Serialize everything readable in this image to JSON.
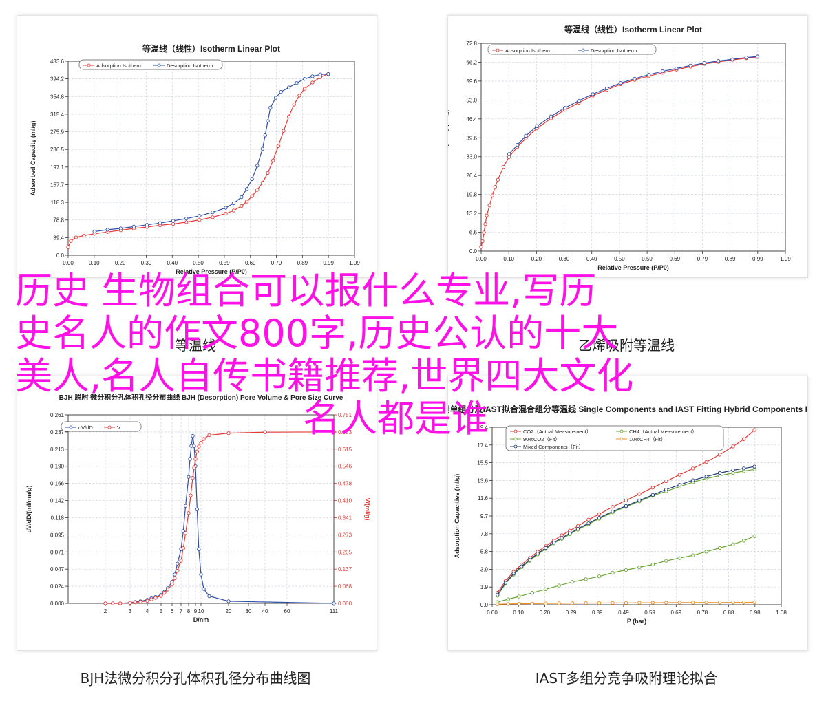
{
  "overlay_title": {
    "line1": "历史 生物组合可以报什么专业,写历",
    "line2": "史名人的作文800字,历史公认的十大",
    "line3": "美人,名人自传书籍推荐,世界四大文化",
    "line4": "名人都是谁"
  },
  "captions": {
    "top_left": "等温线",
    "top_right": "乙烯吸附等温线",
    "bottom_left": "BJH法微分积分孔体积孔径分布曲线图",
    "bottom_right": "IAST多组分竞争吸附理论拟合"
  },
  "colors": {
    "red": "#e53935",
    "blue": "#2f4fa8",
    "green": "#6aa533",
    "orange": "#f08a1d",
    "navy": "#1f3a78"
  },
  "chart_data": [
    {
      "type": "line",
      "title": "等温线（线性）Isotherm Linear Plot",
      "xlabel": "Relative Pressure (P/P0)",
      "ylabel": "Adsorbed Capacity (ml/g)",
      "xlim": [
        0.0,
        1.09
      ],
      "ylim": [
        0.0,
        433.6
      ],
      "xticks": [
        "0.00",
        "0.10",
        "0.20",
        "0.30",
        "0.40",
        "0.50",
        "0.59",
        "0.69",
        "0.79",
        "0.89",
        "0.99",
        "1.09"
      ],
      "yticks": [
        "0.0",
        "39.4",
        "78.8",
        "118.3",
        "157.7",
        "197.1",
        "236.5",
        "275.9",
        "315.4",
        "354.8",
        "394.2",
        "433.6"
      ],
      "legend_position": "top-left",
      "series": [
        {
          "name": "Adsorption Isotherm",
          "color": "#e53935",
          "x": [
            0.0,
            0.01,
            0.03,
            0.06,
            0.1,
            0.15,
            0.2,
            0.25,
            0.3,
            0.35,
            0.4,
            0.45,
            0.5,
            0.55,
            0.6,
            0.63,
            0.66,
            0.68,
            0.7,
            0.72,
            0.74,
            0.76,
            0.78,
            0.8,
            0.82,
            0.84,
            0.86,
            0.88,
            0.9,
            0.93,
            0.96,
            0.99
          ],
          "y": [
            18,
            32,
            40,
            44,
            48,
            52,
            56,
            60,
            63,
            67,
            70,
            74,
            79,
            85,
            93,
            100,
            110,
            120,
            132,
            146,
            162,
            184,
            212,
            244,
            278,
            310,
            337,
            357,
            372,
            386,
            398,
            405
          ]
        },
        {
          "name": "Desorption Isotherm",
          "color": "#2f4fa8",
          "x": [
            0.99,
            0.96,
            0.93,
            0.9,
            0.87,
            0.84,
            0.81,
            0.79,
            0.77,
            0.76,
            0.75,
            0.74,
            0.72,
            0.7,
            0.68,
            0.66,
            0.63,
            0.6,
            0.55,
            0.5,
            0.45,
            0.4,
            0.35,
            0.3,
            0.25,
            0.2,
            0.15,
            0.1
          ],
          "y": [
            405,
            404,
            400,
            394,
            385,
            375,
            365,
            352,
            330,
            300,
            268,
            238,
            200,
            170,
            148,
            130,
            116,
            106,
            96,
            88,
            82,
            77,
            72,
            68,
            64,
            60,
            57,
            53
          ]
        }
      ]
    },
    {
      "type": "line",
      "title": "等温线（线性）Isotherm Linear Plot",
      "xlabel": "Relative Pressure (P/P0)",
      "ylabel": "Adsorbed Capacity (ml/g)",
      "xlim": [
        0.0,
        1.09
      ],
      "ylim": [
        0.0,
        72.8
      ],
      "xticks": [
        "0.00",
        "0.10",
        "0.20",
        "0.30",
        "0.40",
        "0.50",
        "0.59",
        "0.69",
        "0.79",
        "0.89",
        "0.99",
        "1.09"
      ],
      "yticks": [
        "0.0",
        "6.6",
        "13.2",
        "19.8",
        "26.4",
        "33.0",
        "39.6",
        "46.4",
        "53.0",
        "59.6",
        "66.2",
        "72.8"
      ],
      "legend_position": "top-left",
      "series": [
        {
          "name": "Adsorption Isotherm",
          "color": "#e53935",
          "x": [
            0.0,
            0.005,
            0.01,
            0.015,
            0.02,
            0.03,
            0.04,
            0.05,
            0.06,
            0.08,
            0.1,
            0.13,
            0.16,
            0.2,
            0.25,
            0.3,
            0.35,
            0.4,
            0.45,
            0.5,
            0.55,
            0.6,
            0.65,
            0.7,
            0.75,
            0.8,
            0.85,
            0.9,
            0.95,
            0.99
          ],
          "y": [
            1.5,
            3.5,
            6.5,
            9.5,
            12.5,
            16,
            19.5,
            22.5,
            25,
            29.5,
            33,
            36.5,
            39.5,
            43,
            46.5,
            49.5,
            52,
            54.5,
            56.5,
            58.5,
            60,
            61.3,
            62.5,
            63.6,
            64.6,
            65.6,
            66.3,
            67,
            67.6,
            68
          ]
        },
        {
          "name": "Desorption Isotherm",
          "color": "#2f4fa8",
          "x": [
            0.99,
            0.95,
            0.9,
            0.85,
            0.8,
            0.75,
            0.7,
            0.65,
            0.6,
            0.55,
            0.5,
            0.45,
            0.4,
            0.35,
            0.3,
            0.25,
            0.2,
            0.16,
            0.13,
            0.1
          ],
          "y": [
            68.2,
            67.8,
            67.2,
            66.6,
            65.9,
            65,
            64,
            63,
            61.8,
            60.4,
            58.9,
            57,
            55,
            52.7,
            50.2,
            47.2,
            43.8,
            40.4,
            37.2,
            34
          ]
        }
      ]
    },
    {
      "type": "line",
      "title": "BJH 脱附 微分积分孔体积孔径分布曲线 BJH (Desorption) Pore Volume & Pore Size Curve",
      "xlabel": "D/nm",
      "ylabel": "dV/dD/(ml/nm/g)",
      "ylabel_right": "V/(ml/g)",
      "xticks": [
        "2",
        "3",
        "4",
        "5",
        "6",
        "7",
        "8",
        "9",
        "10",
        "20",
        "30",
        "40",
        "60",
        "111"
      ],
      "yticks": [
        "0.000",
        "0.024",
        "0.047",
        "0.071",
        "0.095",
        "0.118",
        "0.142",
        "0.166",
        "0.190",
        "0.213",
        "0.237",
        "0.261"
      ],
      "yticks_right": [
        "0.000",
        "0.068",
        "0.137",
        "0.205",
        "0.273",
        "0.341",
        "0.410",
        "0.478",
        "0.546",
        "0.615",
        "0.683",
        "0.751"
      ],
      "ylim": [
        0.0,
        0.261
      ],
      "ylim_right": [
        0.0,
        0.751
      ],
      "legend_position": "top-left",
      "series": [
        {
          "name": "dV/dD",
          "axis": "left",
          "color": "#2f4fa8",
          "x": [
            2,
            2.3,
            2.6,
            3,
            3.3,
            3.6,
            4,
            4.3,
            4.6,
            5,
            5.3,
            5.6,
            6,
            6.3,
            6.6,
            7,
            7.3,
            7.6,
            8,
            8.2,
            8.4,
            8.6,
            8.8,
            9,
            9.3,
            9.6,
            10,
            11,
            13,
            20,
            111
          ],
          "y": [
            0,
            0,
            0,
            0.001,
            0.002,
            0.003,
            0.005,
            0.007,
            0.009,
            0.012,
            0.016,
            0.021,
            0.03,
            0.04,
            0.055,
            0.075,
            0.1,
            0.135,
            0.175,
            0.2,
            0.218,
            0.232,
            0.218,
            0.19,
            0.13,
            0.075,
            0.04,
            0.02,
            0.01,
            0.003,
            0
          ]
        },
        {
          "name": "V",
          "axis": "right",
          "color": "#e53935",
          "x": [
            2,
            2.3,
            2.6,
            3,
            3.3,
            3.6,
            4,
            4.3,
            4.6,
            5,
            5.3,
            5.6,
            6,
            6.3,
            6.6,
            7,
            7.3,
            7.6,
            8,
            8.3,
            8.6,
            8.8,
            9,
            9.3,
            9.6,
            10,
            11,
            13,
            20,
            40,
            111
          ],
          "y": [
            0,
            0,
            0,
            0.002,
            0.004,
            0.006,
            0.01,
            0.016,
            0.022,
            0.03,
            0.042,
            0.055,
            0.075,
            0.1,
            0.13,
            0.17,
            0.22,
            0.28,
            0.36,
            0.43,
            0.5,
            0.54,
            0.575,
            0.605,
            0.625,
            0.64,
            0.655,
            0.67,
            0.678,
            0.682,
            0.683
          ]
        }
      ]
    },
    {
      "type": "line",
      "title": "实测单组分及IAST拟合混合组分等温线 Single Components and IAST Fitting Hybrid Components Isotherm",
      "xlabel": "P (bar)",
      "ylabel": "Adsorption Capacities (ml/g)",
      "xlim": [
        0.0,
        1.08
      ],
      "ylim": [
        0.0,
        19.4
      ],
      "xticks": [
        "0.00",
        "0.10",
        "0.20",
        "0.29",
        "0.39",
        "0.49",
        "0.59",
        "0.69",
        "0.78",
        "0.88",
        "0.98",
        "1.08"
      ],
      "yticks": [
        "0.0",
        "1.9",
        "3.9",
        "5.8",
        "7.8",
        "9.7",
        "11.6",
        "13.6",
        "15.5",
        "17.4",
        "19.4"
      ],
      "legend_position": "top-left",
      "series": [
        {
          "name": "CO2（Actual Measurement）",
          "color": "#e53935",
          "x": [
            0.02,
            0.05,
            0.08,
            0.11,
            0.14,
            0.17,
            0.2,
            0.23,
            0.26,
            0.29,
            0.32,
            0.36,
            0.4,
            0.45,
            0.5,
            0.55,
            0.6,
            0.65,
            0.7,
            0.75,
            0.8,
            0.85,
            0.9,
            0.94,
            0.98
          ],
          "y": [
            1.3,
            2.6,
            3.6,
            4.4,
            5.1,
            5.8,
            6.4,
            7.0,
            7.6,
            8.1,
            8.6,
            9.3,
            9.9,
            10.7,
            11.4,
            12.1,
            12.8,
            13.5,
            14.2,
            14.9,
            15.6,
            16.4,
            17.3,
            18.1,
            19.1
          ]
        },
        {
          "name": "CH4（Actual Measurement）",
          "color": "#6aa533",
          "x": [
            0.02,
            0.06,
            0.1,
            0.15,
            0.2,
            0.25,
            0.3,
            0.35,
            0.4,
            0.45,
            0.5,
            0.55,
            0.6,
            0.65,
            0.7,
            0.75,
            0.8,
            0.85,
            0.9,
            0.94,
            0.98
          ],
          "y": [
            0.3,
            0.6,
            0.9,
            1.3,
            1.7,
            2.1,
            2.5,
            2.8,
            3.1,
            3.5,
            3.8,
            4.1,
            4.4,
            4.8,
            5.1,
            5.4,
            5.8,
            6.2,
            6.6,
            7.0,
            7.5
          ]
        },
        {
          "name": "90%CO2（Fit）",
          "color": "#6aa533",
          "x": [
            0.02,
            0.05,
            0.08,
            0.11,
            0.14,
            0.17,
            0.2,
            0.23,
            0.26,
            0.29,
            0.32,
            0.36,
            0.4,
            0.45,
            0.5,
            0.55,
            0.6,
            0.65,
            0.7,
            0.75,
            0.8,
            0.85,
            0.9,
            0.94,
            0.98
          ],
          "y": [
            1.0,
            2.3,
            3.3,
            4.1,
            4.8,
            5.5,
            6.1,
            6.7,
            7.2,
            7.7,
            8.2,
            8.8,
            9.4,
            10.1,
            10.7,
            11.3,
            11.9,
            12.4,
            12.9,
            13.4,
            13.8,
            14.1,
            14.4,
            14.6,
            14.8
          ]
        },
        {
          "name": "10%CH4（Fit）",
          "color": "#f08a1d",
          "x": [
            0.02,
            0.06,
            0.1,
            0.15,
            0.2,
            0.25,
            0.3,
            0.35,
            0.4,
            0.45,
            0.5,
            0.55,
            0.6,
            0.65,
            0.7,
            0.75,
            0.8,
            0.85,
            0.9,
            0.94,
            0.98
          ],
          "y": [
            0.05,
            0.08,
            0.1,
            0.12,
            0.14,
            0.16,
            0.17,
            0.18,
            0.19,
            0.2,
            0.2,
            0.21,
            0.22,
            0.22,
            0.23,
            0.23,
            0.24,
            0.24,
            0.25,
            0.25,
            0.26
          ]
        },
        {
          "name": "Mixed Components（Fit）",
          "color": "#1f3a78",
          "x": [
            0.02,
            0.05,
            0.08,
            0.11,
            0.14,
            0.17,
            0.2,
            0.23,
            0.26,
            0.29,
            0.32,
            0.36,
            0.4,
            0.45,
            0.5,
            0.55,
            0.6,
            0.65,
            0.7,
            0.75,
            0.8,
            0.85,
            0.9,
            0.94,
            0.98
          ],
          "y": [
            1.1,
            2.4,
            3.4,
            4.2,
            4.9,
            5.6,
            6.2,
            6.8,
            7.3,
            7.8,
            8.3,
            8.9,
            9.5,
            10.2,
            10.8,
            11.4,
            12.0,
            12.6,
            13.1,
            13.6,
            14.0,
            14.4,
            14.7,
            14.9,
            15.1
          ]
        }
      ]
    }
  ]
}
